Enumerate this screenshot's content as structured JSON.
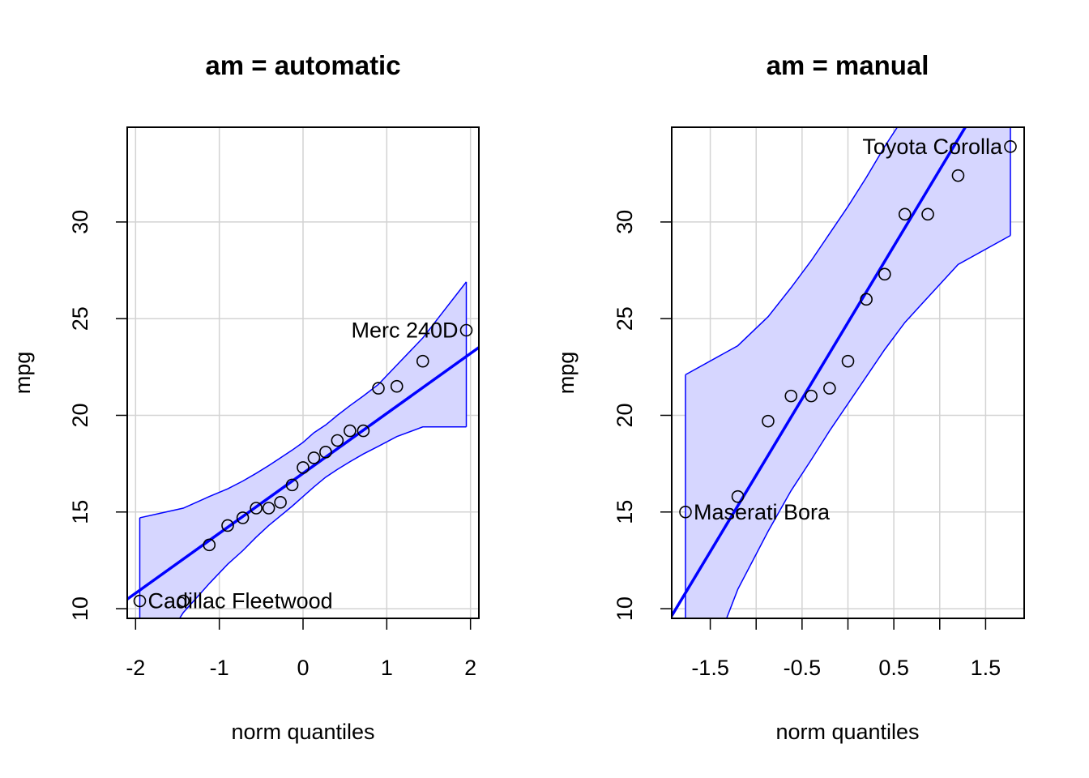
{
  "chart_data": [
    {
      "type": "scatter",
      "title": "am = automatic",
      "xlabel": "norm quantiles",
      "ylabel": "mpg",
      "xlim": [
        -2.1,
        2.1
      ],
      "ylim": [
        9.5,
        34.9
      ],
      "x_ticks": [
        -2,
        -1,
        0,
        1,
        2
      ],
      "x_tick_labels": [
        "-2",
        "-1",
        "0",
        "1",
        "2"
      ],
      "y_ticks": [
        10,
        15,
        20,
        25,
        30
      ],
      "y_tick_labels": [
        "10",
        "15",
        "20",
        "25",
        "30"
      ],
      "grid": true,
      "points": [
        {
          "x": -1.95,
          "y": 10.4
        },
        {
          "x": -1.43,
          "y": 10.4
        },
        {
          "x": -1.12,
          "y": 13.3
        },
        {
          "x": -0.9,
          "y": 14.3
        },
        {
          "x": -0.72,
          "y": 14.7
        },
        {
          "x": -0.56,
          "y": 15.2
        },
        {
          "x": -0.41,
          "y": 15.2
        },
        {
          "x": -0.27,
          "y": 15.5
        },
        {
          "x": -0.13,
          "y": 16.4
        },
        {
          "x": 0.0,
          "y": 17.3
        },
        {
          "x": 0.13,
          "y": 17.8
        },
        {
          "x": 0.27,
          "y": 18.1
        },
        {
          "x": 0.41,
          "y": 18.7
        },
        {
          "x": 0.56,
          "y": 19.2
        },
        {
          "x": 0.72,
          "y": 19.2
        },
        {
          "x": 0.9,
          "y": 21.4
        },
        {
          "x": 1.12,
          "y": 21.5
        },
        {
          "x": 1.43,
          "y": 22.8
        },
        {
          "x": 1.95,
          "y": 24.4
        }
      ],
      "reference_line": {
        "intercept": 17.0,
        "slope": 3.1
      },
      "envelope": {
        "x": [
          -1.95,
          -1.43,
          -1.12,
          -0.9,
          -0.72,
          -0.56,
          -0.41,
          -0.27,
          -0.13,
          0.0,
          0.13,
          0.27,
          0.41,
          0.56,
          0.72,
          0.9,
          1.12,
          1.43,
          1.95
        ],
        "lower": [
          6.3,
          9.8,
          11.3,
          12.3,
          13.0,
          13.7,
          14.3,
          14.8,
          15.3,
          15.8,
          16.3,
          16.8,
          17.2,
          17.6,
          18.0,
          18.4,
          18.9,
          19.4,
          19.4
        ],
        "upper": [
          14.7,
          15.2,
          15.8,
          16.2,
          16.6,
          17.0,
          17.4,
          17.8,
          18.2,
          18.6,
          19.1,
          19.5,
          20.0,
          20.5,
          21.0,
          21.6,
          22.6,
          24.0,
          26.9
        ]
      },
      "annotations": [
        {
          "label": "Merc 240D",
          "x": 1.95,
          "y": 24.4,
          "side": "left"
        },
        {
          "label": "Cadillac Fleetwood",
          "x": -1.95,
          "y": 10.4,
          "side": "right"
        }
      ],
      "colors": {
        "line": "#0000ff",
        "band_fill": "#d6d6ff",
        "points": "#000000",
        "grid": "#d3d3d3"
      }
    },
    {
      "type": "scatter",
      "title": "am = manual",
      "xlabel": "norm quantiles",
      "ylabel": "mpg",
      "xlim": [
        -1.92,
        1.92
      ],
      "ylim": [
        9.5,
        34.9
      ],
      "x_ticks": [
        -1.5,
        -1.0,
        -0.5,
        0.0,
        0.5,
        1.0,
        1.5
      ],
      "x_tick_labels": [
        "-1.5",
        "",
        "-0.5",
        "",
        "0.5",
        "",
        "1.5"
      ],
      "y_ticks": [
        10,
        15,
        20,
        25,
        30
      ],
      "y_tick_labels": [
        "10",
        "15",
        "20",
        "25",
        "30"
      ],
      "grid": true,
      "points": [
        {
          "x": -1.77,
          "y": 15.0
        },
        {
          "x": -1.2,
          "y": 15.8
        },
        {
          "x": -0.87,
          "y": 19.7
        },
        {
          "x": -0.62,
          "y": 21.0
        },
        {
          "x": -0.4,
          "y": 21.0
        },
        {
          "x": -0.2,
          "y": 21.4
        },
        {
          "x": 0.0,
          "y": 22.8
        },
        {
          "x": 0.2,
          "y": 26.0
        },
        {
          "x": 0.4,
          "y": 27.3
        },
        {
          "x": 0.62,
          "y": 30.4
        },
        {
          "x": 0.87,
          "y": 30.4
        },
        {
          "x": 1.2,
          "y": 32.4
        },
        {
          "x": 1.77,
          "y": 33.9
        }
      ],
      "reference_line": {
        "intercept": 24.8,
        "slope": 7.9
      },
      "envelope": {
        "x": [
          -1.77,
          -1.2,
          -0.87,
          -0.62,
          -0.4,
          -0.2,
          0.0,
          0.2,
          0.4,
          0.62,
          0.87,
          1.2,
          1.77
        ],
        "lower": [
          4.0,
          11.0,
          14.0,
          16.1,
          17.7,
          19.2,
          20.6,
          22.0,
          23.4,
          24.8,
          26.1,
          27.8,
          29.3
        ],
        "upper": [
          22.1,
          23.6,
          25.1,
          26.6,
          28.0,
          29.4,
          30.8,
          32.3,
          33.9,
          35.5,
          37.2,
          39.3,
          45.0
        ]
      },
      "annotations": [
        {
          "label": "Toyota Corolla",
          "x": 1.77,
          "y": 33.9,
          "side": "left"
        },
        {
          "label": "Maserati Bora",
          "x": -1.77,
          "y": 15.0,
          "side": "right"
        }
      ],
      "colors": {
        "line": "#0000ff",
        "band_fill": "#d6d6ff",
        "points": "#000000",
        "grid": "#d3d3d3"
      }
    }
  ]
}
